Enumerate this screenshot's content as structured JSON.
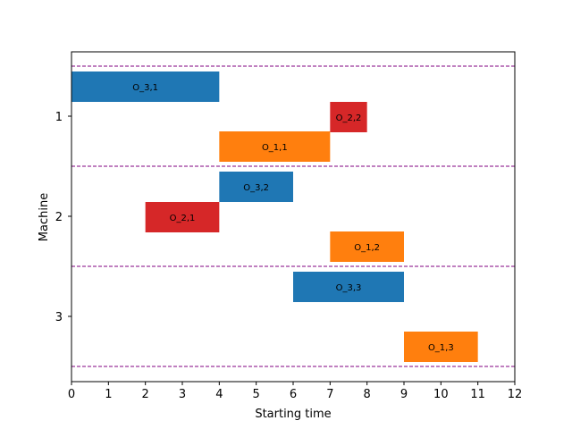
{
  "chart_data": {
    "type": "gantt",
    "title": "",
    "xlabel": "Starting time",
    "ylabel": "Machine",
    "xlim": [
      0,
      12
    ],
    "xticks": [
      "0",
      "1",
      "2",
      "3",
      "4",
      "5",
      "6",
      "7",
      "8",
      "9",
      "10",
      "11",
      "12"
    ],
    "machines": [
      "1",
      "2",
      "3"
    ],
    "separator_color": "#800080",
    "separator_style": "dashed",
    "tasks": [
      {
        "label": "O_3,1",
        "machine": 1,
        "lane": 0,
        "start": 0,
        "end": 4,
        "color": "#1f77b4"
      },
      {
        "label": "O_2,2",
        "machine": 1,
        "lane": 1,
        "start": 7,
        "end": 8,
        "color": "#d62728"
      },
      {
        "label": "O_1,1",
        "machine": 1,
        "lane": 2,
        "start": 4,
        "end": 7,
        "color": "#ff7f0e"
      },
      {
        "label": "O_3,2",
        "machine": 2,
        "lane": 0,
        "start": 4,
        "end": 6,
        "color": "#1f77b4"
      },
      {
        "label": "O_2,1",
        "machine": 2,
        "lane": 1,
        "start": 2,
        "end": 4,
        "color": "#d62728"
      },
      {
        "label": "O_1,2",
        "machine": 2,
        "lane": 2,
        "start": 7,
        "end": 9,
        "color": "#ff7f0e"
      },
      {
        "label": "O_3,3",
        "machine": 3,
        "lane": 0,
        "start": 6,
        "end": 9,
        "color": "#1f77b4"
      },
      {
        "label": "O_1,3",
        "machine": 3,
        "lane": 2,
        "start": 9,
        "end": 11,
        "color": "#ff7f0e"
      }
    ]
  }
}
